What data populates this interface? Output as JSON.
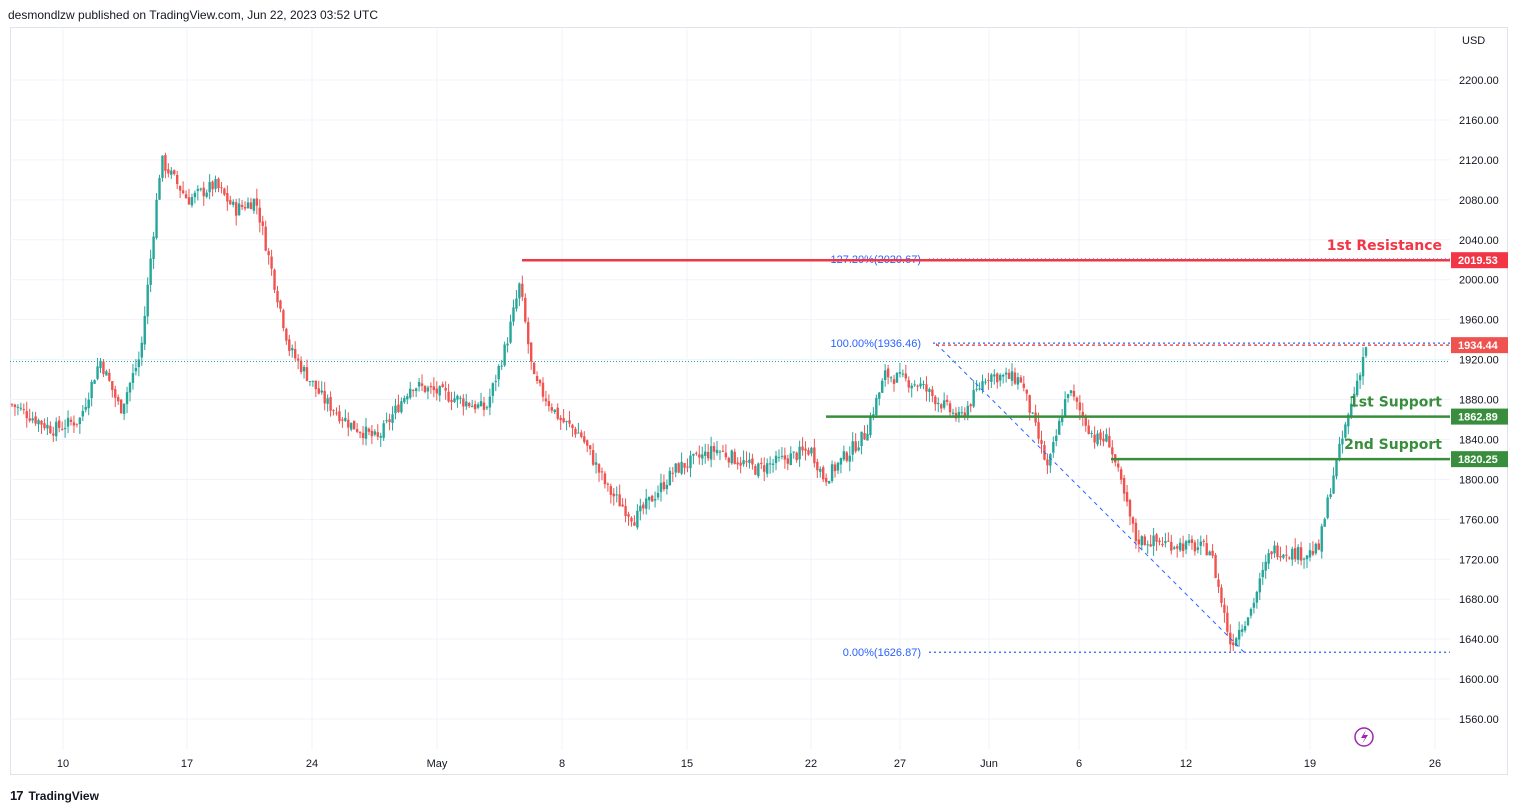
{
  "header": {
    "published": "desmondlzw published on TradingView.com, Jun 22, 2023 03:52 UTC"
  },
  "footer": {
    "brand": "TradingView",
    "logo": "tv-logo-icon"
  },
  "colors": {
    "up": "#26a69a",
    "down": "#ef5350",
    "resistance": "#f23645",
    "support": "#388e3c",
    "fib": "#2962ff",
    "grid": "#f0f3fa"
  },
  "chart_data": {
    "type": "candlestick",
    "currency": "USD",
    "y_ticks": [
      "2200.00",
      "2160.00",
      "2120.00",
      "2080.00",
      "2040.00",
      "2000.00",
      "1960.00",
      "1920.00",
      "1880.00",
      "1840.00",
      "1800.00",
      "1760.00",
      "1720.00",
      "1680.00",
      "1640.00",
      "1600.00",
      "1560.00"
    ],
    "ylim": [
      1530,
      2240
    ],
    "x_ticks": [
      "10",
      "17",
      "24",
      "May",
      "8",
      "15",
      "22",
      "27",
      "Jun",
      "6",
      "12",
      "19",
      "26"
    ],
    "levels": [
      {
        "label": "1st Resistance",
        "tag": "2019.53",
        "value": 2019.53,
        "kind": "resistance"
      },
      {
        "label": "1st Support",
        "tag": "1862.89",
        "value": 1862.89,
        "kind": "support"
      },
      {
        "label": "2nd Support",
        "tag": "1820.25",
        "value": 1820.25,
        "kind": "support"
      }
    ],
    "current_price": {
      "tag": "1934.44",
      "value": 1934.44
    },
    "fibonacci": [
      {
        "label": "127.20%(2020.67)",
        "value": 2020.67
      },
      {
        "label": "100.00%(1936.46)",
        "value": 1936.46
      },
      {
        "label": "0.00%(1626.87)",
        "value": 1626.87
      }
    ],
    "price_path": [
      {
        "t": 0,
        "p": 1875
      },
      {
        "t": 0.03,
        "p": 1850
      },
      {
        "t": 0.05,
        "p": 1860
      },
      {
        "t": 0.065,
        "p": 1920
      },
      {
        "t": 0.08,
        "p": 1870
      },
      {
        "t": 0.095,
        "p": 1925
      },
      {
        "t": 0.11,
        "p": 2120
      },
      {
        "t": 0.13,
        "p": 2080
      },
      {
        "t": 0.15,
        "p": 2095
      },
      {
        "t": 0.165,
        "p": 2070
      },
      {
        "t": 0.18,
        "p": 2080
      },
      {
        "t": 0.205,
        "p": 1930
      },
      {
        "t": 0.23,
        "p": 1880
      },
      {
        "t": 0.25,
        "p": 1855
      },
      {
        "t": 0.27,
        "p": 1840
      },
      {
        "t": 0.295,
        "p": 1895
      },
      {
        "t": 0.32,
        "p": 1885
      },
      {
        "t": 0.35,
        "p": 1870
      },
      {
        "t": 0.365,
        "p": 1935
      },
      {
        "t": 0.375,
        "p": 1995
      },
      {
        "t": 0.385,
        "p": 1900
      },
      {
        "t": 0.405,
        "p": 1860
      },
      {
        "t": 0.42,
        "p": 1845
      },
      {
        "t": 0.44,
        "p": 1790
      },
      {
        "t": 0.46,
        "p": 1760
      },
      {
        "t": 0.49,
        "p": 1810
      },
      {
        "t": 0.52,
        "p": 1830
      },
      {
        "t": 0.55,
        "p": 1810
      },
      {
        "t": 0.59,
        "p": 1830
      },
      {
        "t": 0.6,
        "p": 1800
      },
      {
        "t": 0.63,
        "p": 1845
      },
      {
        "t": 0.645,
        "p": 1905
      },
      {
        "t": 0.67,
        "p": 1895
      },
      {
        "t": 0.7,
        "p": 1860
      },
      {
        "t": 0.72,
        "p": 1905
      },
      {
        "t": 0.745,
        "p": 1900
      },
      {
        "t": 0.765,
        "p": 1810
      },
      {
        "t": 0.78,
        "p": 1890
      },
      {
        "t": 0.8,
        "p": 1840
      },
      {
        "t": 0.81,
        "p": 1840
      },
      {
        "t": 0.83,
        "p": 1740
      },
      {
        "t": 0.86,
        "p": 1735
      },
      {
        "t": 0.885,
        "p": 1730
      },
      {
        "t": 0.9,
        "p": 1635
      },
      {
        "t": 0.915,
        "p": 1670
      },
      {
        "t": 0.93,
        "p": 1730
      },
      {
        "t": 0.955,
        "p": 1725
      },
      {
        "t": 0.965,
        "p": 1730
      },
      {
        "t": 0.975,
        "p": 1800
      },
      {
        "t": 0.99,
        "p": 1880
      },
      {
        "t": 1.0,
        "p": 1934
      }
    ]
  }
}
